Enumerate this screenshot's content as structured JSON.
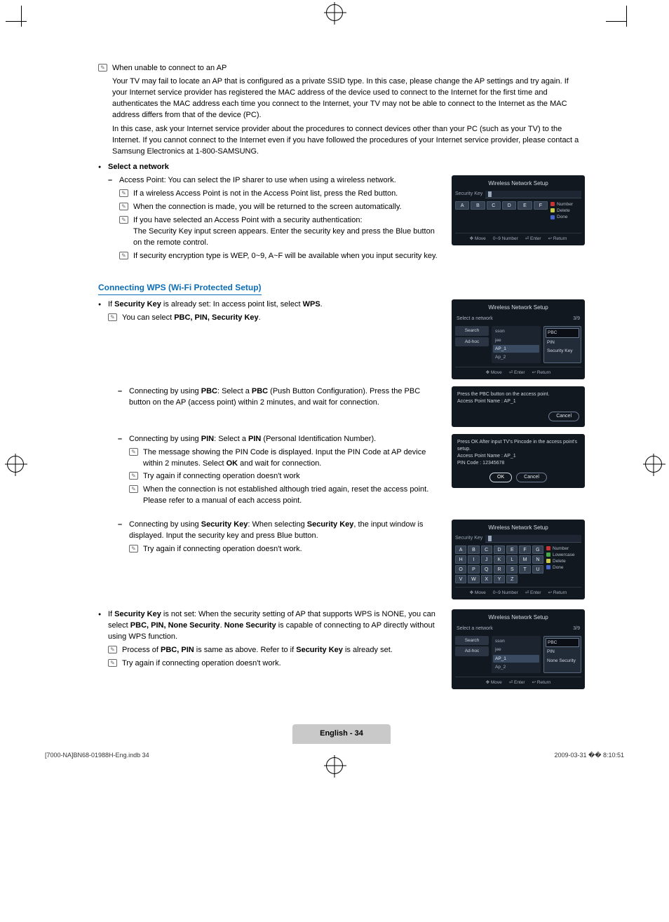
{
  "intro": {
    "heading": "When unable to connect to an AP",
    "p1": "Your TV may fail to locate an AP that is configured as a private SSID type. In this case, please change the AP settings and try again. If your Internet service provider has registered the MAC address of the device used to connect to the Internet for the first time and authenticates the MAC address each time you connect to the Internet, your TV may not be able to connect to the Internet as the MAC address differs from that of the device (PC).",
    "p2": "In this case, ask your Internet service provider about the procedures to connect devices other than your PC (such as your TV) to the Internet. If you cannot connect to the Internet even if you have followed the procedures of your Internet service provider, please contact a Samsung Electronics at 1-800-SAMSUNG."
  },
  "select_network": {
    "heading": "Select a network",
    "l1": "Access Point: You can select the IP sharer to use when using a wireless network.",
    "n1": "If a wireless Access Point is not in the Access Point list, press the Red button.",
    "n2": "When the connection is made, you will be returned to the screen automatically.",
    "n3": "If you have selected an Access Point with a security authentication:",
    "n3b": "The Security Key input screen appears. Enter the security key and press the Blue button on the remote control.",
    "n4": "If security encryption type is WEP, 0~9, A~F will be available when you input security key."
  },
  "wps": {
    "title": "Connecting WPS (Wi-Fi Protected Setup)",
    "pre": "If ",
    "b1": "Security Key",
    "mid": " is already set: In access point list, select ",
    "b2": "WPS",
    "note1_pre": "You can select ",
    "note1_b": "PBC, PIN, Security Key",
    "pbc_pre": "Connecting by using ",
    "pbc_b": "PBC",
    "pbc_mid": ": Select a ",
    "pbc_b2": "PBC",
    "pbc_post": " (Push Button Configuration). Press the PBC button on the AP (access point) within 2 minutes, and wait for connection.",
    "pin_pre": "Connecting by using ",
    "pin_b": "PIN",
    "pin_mid": ": Select a ",
    "pin_b2": "PIN",
    "pin_post": " (Personal Identification Number).",
    "pin_n1_pre": "The message showing the PIN Code is displayed. Input the PIN Code at AP device within 2 minutes. Select ",
    "pin_n1_b": "OK",
    "pin_n1_post": " and wait for connection.",
    "pin_n2": "Try again if connecting operation doesn't work",
    "pin_n3": "When the connection is not established although tried again, reset the access point. Please refer to a manual of each access point.",
    "sk_pre": "Connecting by using ",
    "sk_b": "Security Key",
    "sk_mid": ": When selecting ",
    "sk_b2": "Security Key",
    "sk_post": ", the input window is displayed. Input the security key and press Blue button.",
    "sk_n1": "Try again if connecting operation doesn't work."
  },
  "wps_none": {
    "pre": "If ",
    "b1": "Security Key",
    "mid": " is not set: When the security setting of AP that supports WPS is NONE, you can select ",
    "b2": "PBC, PIN, None Security",
    "mid2": ". ",
    "b3": "None Security",
    "post": " is capable of connecting to AP directly without using WPS function.",
    "n1_pre": "Process of ",
    "n1_b": "PBC, PIN",
    "n1_mid": " is same as above. Refer to if ",
    "n1_b2": "Security Key",
    "n1_post": " is already set.",
    "n2": "Try again if connecting operation doesn't work."
  },
  "ui1": {
    "title": "Wireless Network Setup",
    "label": "Security Key",
    "keys": [
      "A",
      "B",
      "C",
      "D",
      "E",
      "F"
    ],
    "legend": {
      "number": "Number",
      "delete": "Delete",
      "done": "Done"
    },
    "footer": {
      "move": "Move",
      "num": "0~9 Number",
      "enter": "Enter",
      "return": "Return"
    }
  },
  "ui2": {
    "title": "Wireless Network Setup",
    "heading": "Select a network",
    "count": "3/9",
    "sidebar": {
      "search": "Search",
      "adhoc": "Ad-hoc"
    },
    "aps": [
      "sson",
      "jee",
      "AP_1",
      "Ap_2"
    ],
    "popup": {
      "a": "PBC",
      "b": "PIN",
      "c": "Security Key"
    },
    "footer": {
      "move": "Move",
      "enter": "Enter",
      "return": "Return"
    }
  },
  "ui3": {
    "l1": "Press the PBC button on the access point.",
    "l2": "Access Point Name : AP_1",
    "cancel": "Cancel"
  },
  "ui4": {
    "l1": "Press OK After input TV's Pincode in the access point's setup.",
    "l2": "Access Point Name : AP_1",
    "l3": "PIN Code : 12345678",
    "ok": "OK",
    "cancel": "Cancel"
  },
  "ui5": {
    "title": "Wireless Network Setup",
    "label": "Security Key",
    "keys": [
      "A",
      "B",
      "C",
      "D",
      "E",
      "F",
      "G",
      "H",
      "I",
      "J",
      "K",
      "L",
      "M",
      "N",
      "O",
      "P",
      "Q",
      "R",
      "S",
      "T",
      "U",
      "V",
      "W",
      "X",
      "Y",
      "Z"
    ],
    "legend": {
      "number": "Number",
      "lower": "Lowercase",
      "delete": "Delete",
      "done": "Done"
    },
    "footer": {
      "move": "Move",
      "num": "0~9 Number",
      "enter": "Enter",
      "return": "Return"
    }
  },
  "ui6": {
    "title": "Wireless Network Setup",
    "heading": "Select a network",
    "count": "3/9",
    "sidebar": {
      "search": "Search",
      "adhoc": "Ad-hoc"
    },
    "aps": [
      "sson",
      "jee",
      "AP_1",
      "Ap_2"
    ],
    "popup": {
      "a": "PBC",
      "b": "PIN",
      "c": "None Security"
    },
    "footer": {
      "move": "Move",
      "enter": "Enter",
      "return": "Return"
    }
  },
  "page": {
    "badge": "English - 34",
    "footL": "[7000-NA]BN68-01988H-Eng.indb   34",
    "footR": "2009-03-31   �� 8:10:51"
  }
}
